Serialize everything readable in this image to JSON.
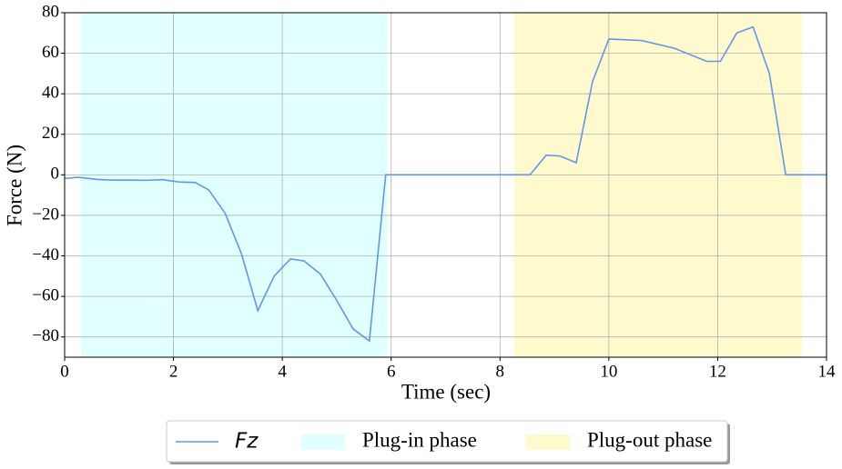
{
  "chart_data": {
    "type": "line",
    "xlabel": "Time (sec)",
    "ylabel": "Force (N)",
    "x": [
      0,
      0.25,
      0.6,
      0.9,
      1.3,
      1.5,
      1.8,
      2.1,
      2.4,
      2.65,
      2.95,
      3.25,
      3.55,
      3.85,
      4.15,
      4.4,
      4.7,
      5.0,
      5.3,
      5.6,
      5.9,
      8.55,
      8.85,
      9.1,
      9.4,
      9.7,
      10.0,
      10.6,
      11.2,
      11.8,
      12.05,
      12.35,
      12.65,
      12.95,
      13.25,
      14
    ],
    "series": [
      {
        "name": "Fz",
        "color": "#6495ed",
        "values": [
          -1.8,
          -1.2,
          -2.3,
          -2.6,
          -2.6,
          -2.7,
          -2.4,
          -3.5,
          -3.8,
          -7.5,
          -19,
          -39,
          -67,
          -50,
          -41.5,
          -42.5,
          -49,
          -62,
          -76,
          -82,
          0,
          0,
          9.7,
          9.3,
          6,
          46,
          67,
          66.3,
          62.5,
          56,
          56,
          70,
          73,
          50,
          0,
          0
        ]
      }
    ],
    "regions": [
      {
        "name": "Plug-in phase",
        "color": "#e0ffff",
        "range": [
          0.3,
          5.93
        ]
      },
      {
        "name": "Plug-out phase",
        "color": "#fffacd",
        "range": [
          8.26,
          13.55
        ]
      }
    ],
    "xlim": [
      0,
      14
    ],
    "xticks": [
      0,
      2,
      4,
      6,
      8,
      10,
      12,
      14
    ],
    "ylim": [
      -90,
      80
    ],
    "yticks": [
      {
        "value": -80,
        "label": "−80"
      },
      {
        "value": -60,
        "label": "−60"
      },
      {
        "value": -40,
        "label": "−40"
      },
      {
        "value": -20,
        "label": "−20"
      },
      0,
      20,
      40,
      60,
      80
    ],
    "grid": true,
    "legend": "lower center"
  }
}
